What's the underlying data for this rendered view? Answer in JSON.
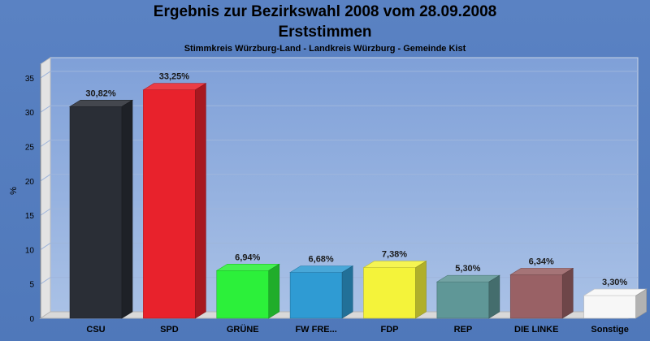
{
  "title": "Ergebnis zur Bezirkswahl 2008 vom 28.09.2008",
  "subtitle": "Erststimmen",
  "subsubtitle": "Stimmkreis Würzburg-Land - Landkreis Würzburg - Gemeinde Kist",
  "chart_data": {
    "type": "bar",
    "title": "Ergebnis zur Bezirkswahl 2008 vom 28.09.2008",
    "subtitle": "Erststimmen",
    "ylabel": "%",
    "xlabel": "",
    "ylim": [
      0,
      37
    ],
    "yticks": [
      0,
      5,
      10,
      15,
      20,
      25,
      30,
      35
    ],
    "grid": true,
    "legend": "none",
    "categories": [
      "CSU",
      "SPD",
      "GRÜNE",
      "FW FRE...",
      "FDP",
      "REP",
      "DIE LINKE",
      "Sonstige"
    ],
    "values": [
      30.82,
      33.25,
      6.94,
      6.68,
      7.38,
      5.3,
      6.34,
      3.3
    ],
    "labels": [
      "30,82%",
      "33,25%",
      "6,94%",
      "6,68%",
      "7,38%",
      "5,30%",
      "6,34%",
      "3,30%"
    ],
    "colors": [
      "#2a2e36",
      "#e8222c",
      "#2cf03a",
      "#2f9bd3",
      "#f4f33a",
      "#5f9797",
      "#996165",
      "#f7f7f7"
    ]
  }
}
